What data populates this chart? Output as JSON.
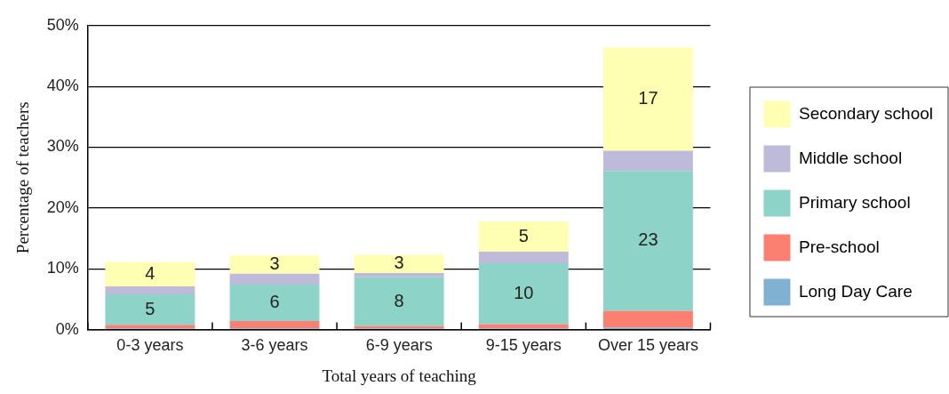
{
  "chart_data": {
    "type": "bar",
    "stacked": true,
    "xlabel": "Total years of teaching",
    "ylabel": "Percentage of teachers",
    "categories": [
      "0-3 years",
      "3-6 years",
      "6-9 years",
      "9-15 years",
      "Over 15 years"
    ],
    "series": [
      {
        "name": "Long Day Care",
        "color": "#80b1d3",
        "values": [
          0.2,
          0.2,
          0.2,
          0.2,
          0.3
        ]
      },
      {
        "name": "Pre-school",
        "color": "#fb8072",
        "values": [
          0.6,
          1.2,
          0.4,
          0.7,
          2.8
        ]
      },
      {
        "name": "Primary school",
        "color": "#8dd3c7",
        "values": [
          5,
          6,
          8,
          10,
          23
        ],
        "value_labels": [
          "5",
          "6",
          "8",
          "10",
          "23"
        ]
      },
      {
        "name": "Middle school",
        "color": "#bebada",
        "values": [
          1.3,
          1.8,
          0.7,
          1.9,
          3.3
        ]
      },
      {
        "name": "Secondary school",
        "color": "#ffffb3",
        "values": [
          4,
          3,
          3,
          5,
          17
        ],
        "value_labels": [
          "4",
          "3",
          "3",
          "5",
          "17"
        ]
      }
    ],
    "ylim": [
      0,
      50
    ],
    "yticks": [
      {
        "value": 0,
        "label": "0%"
      },
      {
        "value": 10,
        "label": "10%"
      },
      {
        "value": 20,
        "label": "20%"
      },
      {
        "value": 30,
        "label": "30%"
      },
      {
        "value": 40,
        "label": "40%"
      },
      {
        "value": 50,
        "label": "50%"
      }
    ],
    "grid": "y",
    "legend": "right"
  }
}
